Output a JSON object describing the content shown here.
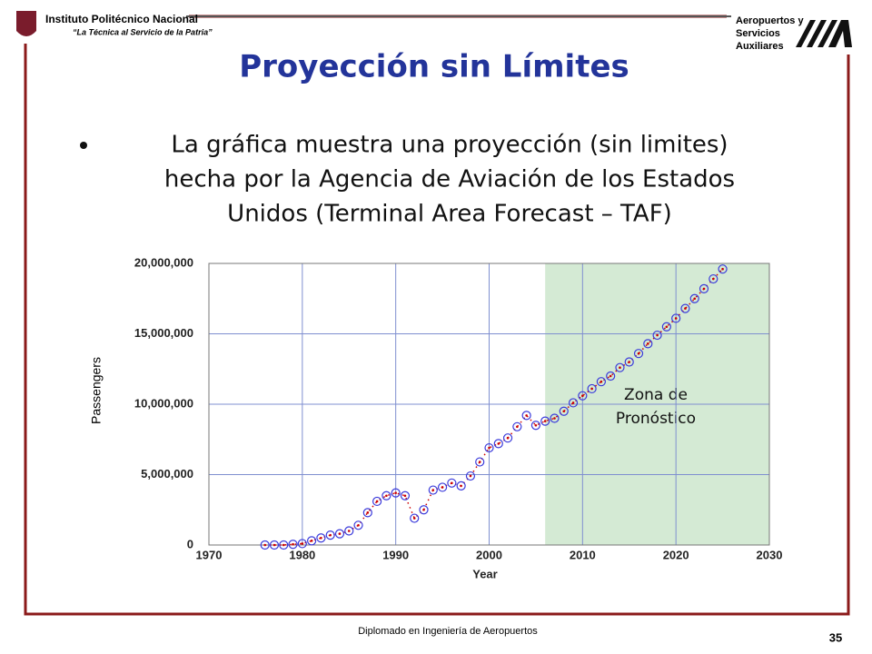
{
  "header": {
    "institution": "Instituto Politécnico Nacional",
    "motto": "“La Técnica al Servicio de la Patria”",
    "partner": [
      "Aeropuertos y",
      "Servicios",
      "Auxiliares"
    ]
  },
  "title": "Proyección sin Límites",
  "bullet": [
    "La gráfica muestra una proyección (sin limites)",
    "hecha por la Agencia de Aviación de los Estados",
    "Unidos (Terminal Area Forecast – TAF)"
  ],
  "footer": {
    "text": "Diplomado en Ingeniería de Aeropuertos",
    "page": "35"
  },
  "chart_data": {
    "type": "scatter",
    "x_label": "Year",
    "y_label": "Passengers",
    "x": [
      1976,
      1977,
      1978,
      1979,
      1980,
      1981,
      1982,
      1983,
      1984,
      1985,
      1986,
      1987,
      1988,
      1989,
      1990,
      1991,
      1992,
      1993,
      1994,
      1995,
      1996,
      1997,
      1998,
      1999,
      2000,
      2001,
      2002,
      2003,
      2004,
      2005,
      2006,
      2007,
      2008,
      2009,
      2010,
      2011,
      2012,
      2013,
      2014,
      2015,
      2016,
      2017,
      2018,
      2019,
      2020,
      2021,
      2022,
      2023,
      2024,
      2025
    ],
    "series": [
      {
        "color": "#3a3adb",
        "line_color": "#cc0000",
        "values": [
          0,
          0,
          0,
          50000,
          100000,
          300000,
          500000,
          700000,
          800000,
          1000000,
          1400000,
          2300000,
          3100000,
          3500000,
          3700000,
          3500000,
          1900000,
          2500000,
          3900000,
          4100000,
          4400000,
          4200000,
          4900000,
          5900000,
          6900000,
          7200000,
          7600000,
          8400000,
          9200000,
          8500000,
          8800000,
          9000000,
          9500000,
          10100000,
          10600000,
          11100000,
          11600000,
          12000000,
          12600000,
          13000000,
          13600000,
          14300000,
          14900000,
          15500000,
          16100000,
          16800000,
          17500000,
          18200000,
          18900000,
          19600000
        ]
      }
    ],
    "xlim": [
      1970,
      2030
    ],
    "xticks": [
      1970,
      1980,
      1990,
      2000,
      2010,
      2020,
      2030
    ],
    "ylim": [
      0,
      20000000
    ],
    "yticks": [
      0,
      {
        "value": 5000000,
        "label": "5,000,000"
      },
      {
        "value": 10000000,
        "label": "10,000,000"
      },
      {
        "value": 15000000,
        "label": "15,000,000"
      },
      {
        "value": 20000000,
        "label": "20,000,000"
      }
    ],
    "grid": true,
    "shaded_region": {
      "x": [
        2006,
        2030
      ],
      "color": "#d4ead4",
      "label": [
        "Zona de",
        "Pronóstico"
      ]
    }
  }
}
